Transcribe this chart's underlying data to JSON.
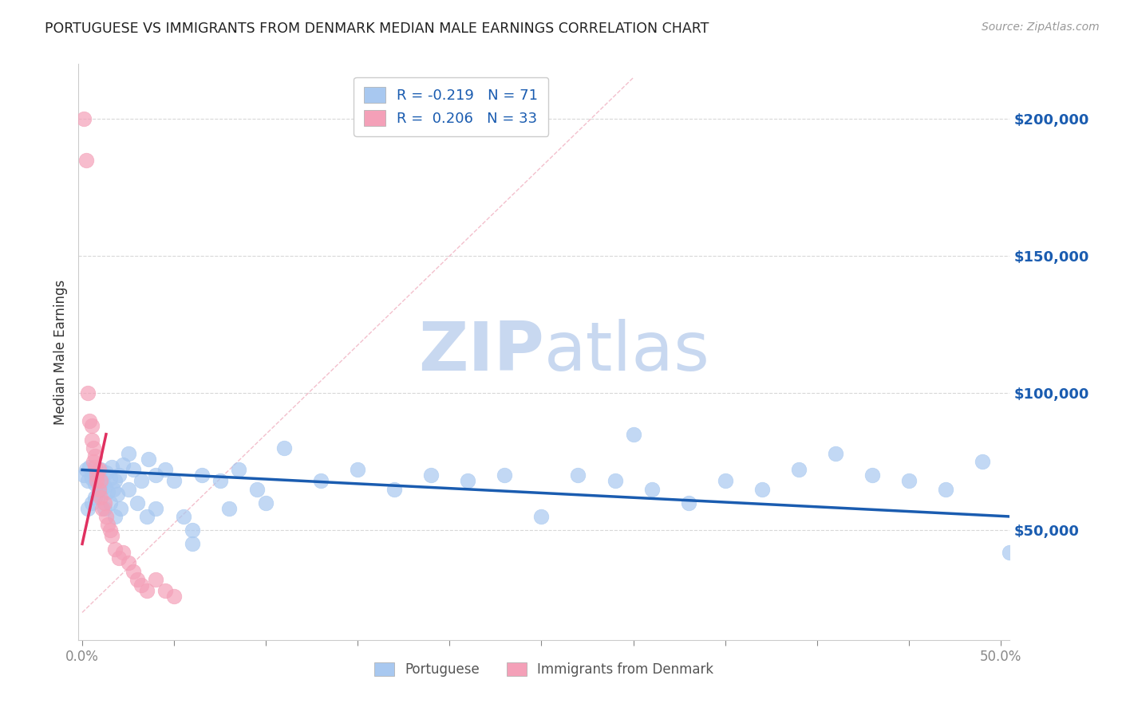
{
  "title": "PORTUGUESE VS IMMIGRANTS FROM DENMARK MEDIAN MALE EARNINGS CORRELATION CHART",
  "source_text": "Source: ZipAtlas.com",
  "ylabel": "Median Male Earnings",
  "right_ytick_labels": [
    "$50,000",
    "$100,000",
    "$150,000",
    "$200,000"
  ],
  "right_ytick_values": [
    50000,
    100000,
    150000,
    200000
  ],
  "ylim": [
    10000,
    220000
  ],
  "xlim": [
    -0.002,
    0.505
  ],
  "blue_color": "#a8c8f0",
  "pink_color": "#f4a0b8",
  "blue_line_color": "#1a5cb0",
  "pink_line_color": "#e03060",
  "diag_line_color": "#f0b0c0",
  "legend_blue_R": "R = ",
  "legend_blue_Rval": "-0.219",
  "legend_blue_N": "N = ",
  "legend_blue_Nval": "71",
  "legend_pink_R": "R =  ",
  "legend_pink_Rval": "0.206",
  "legend_pink_N": "N = ",
  "legend_pink_Nval": "33",
  "bottom_legend_blue": "Portuguese",
  "bottom_legend_pink": "Immigrants from Denmark",
  "watermark_zip": "ZIP",
  "watermark_atlas": "atlas",
  "watermark_color": "#c8d8f0",
  "grid_color": "#d8d8d8",
  "blue_points_x": [
    0.001,
    0.002,
    0.003,
    0.004,
    0.005,
    0.006,
    0.007,
    0.008,
    0.009,
    0.01,
    0.011,
    0.012,
    0.013,
    0.014,
    0.015,
    0.016,
    0.017,
    0.018,
    0.019,
    0.02,
    0.022,
    0.025,
    0.028,
    0.032,
    0.036,
    0.04,
    0.045,
    0.05,
    0.055,
    0.06,
    0.065,
    0.075,
    0.085,
    0.095,
    0.11,
    0.13,
    0.15,
    0.17,
    0.19,
    0.21,
    0.23,
    0.25,
    0.27,
    0.29,
    0.31,
    0.33,
    0.35,
    0.37,
    0.39,
    0.41,
    0.43,
    0.45,
    0.47,
    0.49,
    0.505,
    0.003,
    0.005,
    0.007,
    0.009,
    0.012,
    0.015,
    0.018,
    0.021,
    0.025,
    0.03,
    0.035,
    0.04,
    0.06,
    0.08,
    0.1,
    0.3
  ],
  "blue_points_y": [
    70000,
    72000,
    68000,
    73000,
    69000,
    71000,
    67000,
    70000,
    65000,
    72000,
    68000,
    66000,
    71000,
    64000,
    69000,
    73000,
    65000,
    68000,
    63000,
    70000,
    74000,
    78000,
    72000,
    68000,
    76000,
    70000,
    72000,
    68000,
    55000,
    45000,
    70000,
    68000,
    72000,
    65000,
    80000,
    68000,
    72000,
    65000,
    70000,
    68000,
    70000,
    55000,
    70000,
    68000,
    65000,
    60000,
    68000,
    65000,
    72000,
    78000,
    70000,
    68000,
    65000,
    75000,
    42000,
    58000,
    60000,
    62000,
    63000,
    58000,
    60000,
    55000,
    58000,
    65000,
    60000,
    55000,
    58000,
    50000,
    58000,
    60000,
    85000
  ],
  "pink_points_x": [
    0.001,
    0.002,
    0.003,
    0.004,
    0.005,
    0.005,
    0.006,
    0.006,
    0.007,
    0.007,
    0.008,
    0.008,
    0.009,
    0.009,
    0.01,
    0.01,
    0.011,
    0.012,
    0.013,
    0.014,
    0.015,
    0.016,
    0.018,
    0.02,
    0.022,
    0.025,
    0.028,
    0.03,
    0.032,
    0.035,
    0.04,
    0.045,
    0.05
  ],
  "pink_points_y": [
    200000,
    185000,
    100000,
    90000,
    88000,
    83000,
    80000,
    75000,
    77000,
    73000,
    70000,
    68000,
    72000,
    65000,
    68000,
    62000,
    58000,
    60000,
    55000,
    52000,
    50000,
    48000,
    43000,
    40000,
    42000,
    38000,
    35000,
    32000,
    30000,
    28000,
    32000,
    28000,
    26000
  ],
  "blue_trend_x0": 0.0,
  "blue_trend_x1": 0.505,
  "blue_trend_y0": 72000,
  "blue_trend_y1": 55000,
  "pink_trend_x0": 0.0,
  "pink_trend_x1": 0.013,
  "pink_trend_y0": 45000,
  "pink_trend_y1": 85000
}
